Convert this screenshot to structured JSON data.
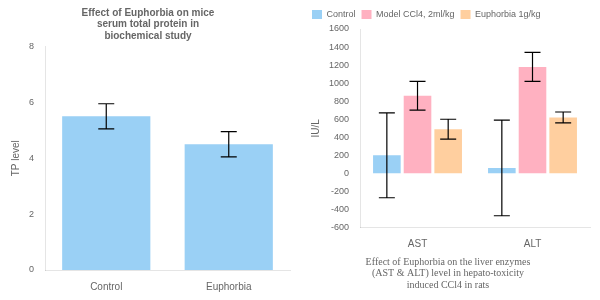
{
  "chart_data": [
    {
      "type": "bar",
      "title": "Effect of Euphorbia on mice\nserum total protein in\nbiochemical study",
      "ylabel": "TP level",
      "categories": [
        "Control",
        "Euphorbia"
      ],
      "values": [
        5.5,
        4.5
      ],
      "errors": [
        0.45,
        0.45
      ],
      "ylim": [
        0,
        8
      ],
      "yticks": [
        0,
        2,
        4,
        6,
        8
      ],
      "grid": false
    },
    {
      "type": "bar",
      "title": "Effect of Euphorbia on the liver enzymes\n(AST & ALT) level in hepato-toxicity\ninduced CCl4 in rats",
      "ylabel": "IU/L",
      "categories": [
        "AST",
        "ALT"
      ],
      "series": [
        {
          "name": "Control",
          "values": [
            200,
            60
          ],
          "errors": [
            470,
            530
          ]
        },
        {
          "name": "Model CCl4, 2ml/kg",
          "values": [
            860,
            1180
          ],
          "errors": [
            160,
            160
          ]
        },
        {
          "name": "Euphorbia 1g/kg",
          "values": [
            490,
            620
          ],
          "errors": [
            110,
            60
          ]
        }
      ],
      "ylim": [
        -600,
        1600
      ],
      "yticks": [
        -600,
        -400,
        -200,
        0,
        200,
        400,
        600,
        800,
        1000,
        1200,
        1400,
        1600
      ],
      "grid": false,
      "legend": "upper left"
    }
  ]
}
